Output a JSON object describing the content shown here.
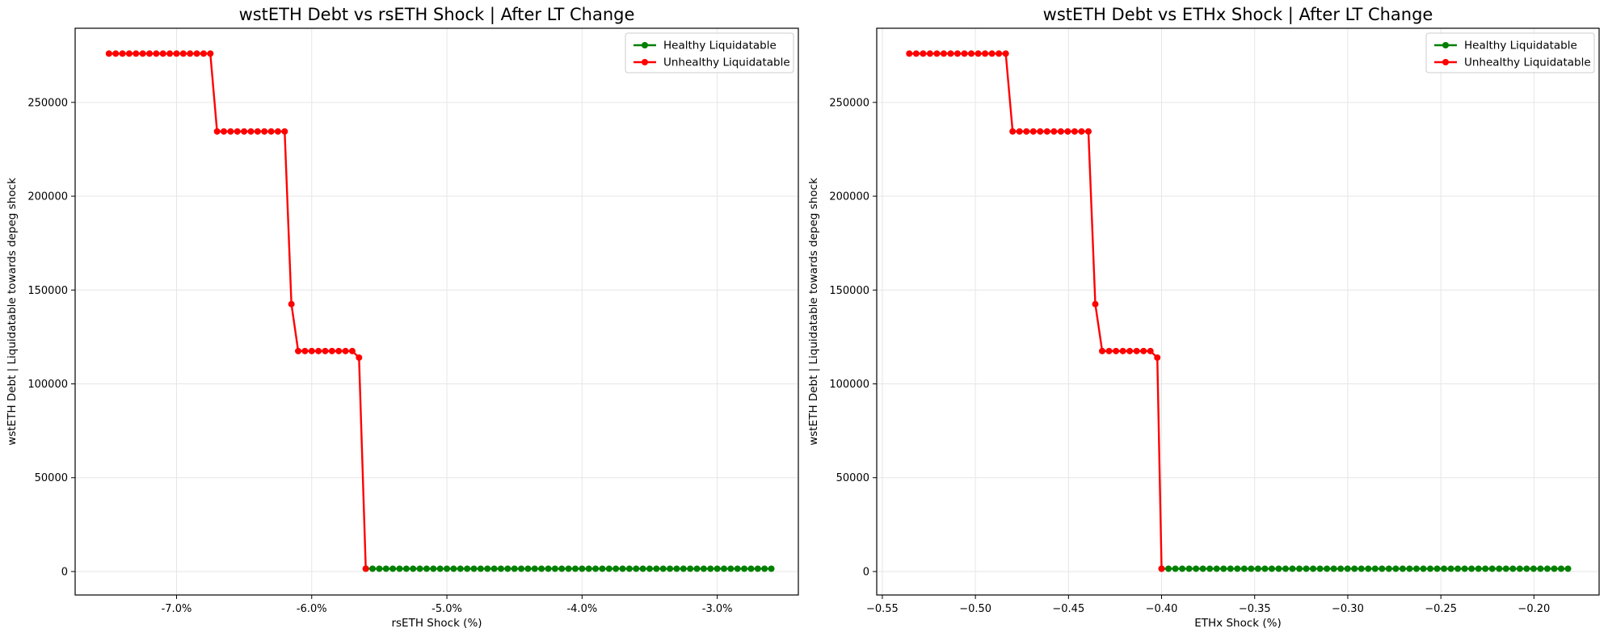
{
  "chart_data": [
    {
      "type": "line",
      "title": "wstETH Debt vs rsETH Shock | After LT Change",
      "xlabel": "rsETH Shock (%)",
      "ylabel": "wstETH Debt | Liquidatable towards depeg shock",
      "xlim": [
        -7.75,
        -2.4
      ],
      "ylim": [
        -12500,
        289500
      ],
      "x_ticks": [
        -7.0,
        -6.0,
        -5.0,
        -4.0,
        -3.0
      ],
      "x_tick_labels": [
        "-7.0%",
        "-6.0%",
        "-5.0%",
        "-4.0%",
        "-3.0%"
      ],
      "y_ticks": [
        0,
        50000,
        100000,
        150000,
        200000,
        250000
      ],
      "y_tick_labels": [
        "0",
        "50000",
        "100000",
        "150000",
        "200000",
        "250000"
      ],
      "grid": true,
      "legend_position": "top-right",
      "series": [
        {
          "name": "Healthy Liquidatable",
          "color": "#008000",
          "x": [
            -5.6,
            -5.55,
            -5.5,
            -5.45,
            -5.4,
            -5.35,
            -5.3,
            -5.25,
            -5.2,
            -5.15,
            -5.1,
            -5.05,
            -5.0,
            -4.95,
            -4.9,
            -4.85,
            -4.8,
            -4.75,
            -4.7,
            -4.65,
            -4.6,
            -4.55,
            -4.5,
            -4.45,
            -4.4,
            -4.35,
            -4.3,
            -4.25,
            -4.2,
            -4.15,
            -4.1,
            -4.05,
            -4.0,
            -3.95,
            -3.9,
            -3.85,
            -3.8,
            -3.75,
            -3.7,
            -3.65,
            -3.6,
            -3.55,
            -3.5,
            -3.45,
            -3.4,
            -3.35,
            -3.3,
            -3.25,
            -3.2,
            -3.15,
            -3.1,
            -3.05,
            -3.0,
            -2.95,
            -2.9,
            -2.85,
            -2.8,
            -2.75,
            -2.7,
            -2.65,
            -2.6
          ],
          "y": [
            1500,
            1500,
            1500,
            1500,
            1500,
            1500,
            1500,
            1500,
            1500,
            1500,
            1500,
            1500,
            1500,
            1500,
            1500,
            1500,
            1500,
            1500,
            1500,
            1500,
            1500,
            1500,
            1500,
            1500,
            1500,
            1500,
            1500,
            1500,
            1500,
            1500,
            1500,
            1500,
            1500,
            1500,
            1500,
            1500,
            1500,
            1500,
            1500,
            1500,
            1500,
            1500,
            1500,
            1500,
            1500,
            1500,
            1500,
            1500,
            1500,
            1500,
            1500,
            1500,
            1500,
            1500,
            1500,
            1500,
            1500,
            1500,
            1500,
            1500,
            1500
          ]
        },
        {
          "name": "Unhealthy Liquidatable",
          "color": "#ff0000",
          "x": [
            -7.5,
            -7.45,
            -7.4,
            -7.35,
            -7.3,
            -7.25,
            -7.2,
            -7.15,
            -7.1,
            -7.05,
            -7.0,
            -6.95,
            -6.9,
            -6.85,
            -6.8,
            -6.75,
            -6.7,
            -6.65,
            -6.6,
            -6.55,
            -6.5,
            -6.45,
            -6.4,
            -6.35,
            -6.3,
            -6.25,
            -6.2,
            -6.15,
            -6.1,
            -6.05,
            -6.0,
            -5.95,
            -5.9,
            -5.85,
            -5.8,
            -5.75,
            -5.7,
            -5.65,
            -5.6
          ],
          "y": [
            276000,
            276000,
            276000,
            276000,
            276000,
            276000,
            276000,
            276000,
            276000,
            276000,
            276000,
            276000,
            276000,
            276000,
            276000,
            276000,
            234500,
            234500,
            234500,
            234500,
            234500,
            234500,
            234500,
            234500,
            234500,
            234500,
            234500,
            142500,
            117500,
            117500,
            117500,
            117500,
            117500,
            117500,
            117500,
            117500,
            117500,
            114000,
            1500
          ]
        }
      ]
    },
    {
      "type": "line",
      "title": "wstETH Debt vs ETHx Shock | After LT Change",
      "xlabel": "ETHx Shock (%)",
      "ylabel": "wstETH Debt | Liquidatable towards depeg shock",
      "xlim": [
        -0.553,
        -0.165
      ],
      "ylim": [
        -12500,
        289500
      ],
      "x_ticks": [
        -0.55,
        -0.5,
        -0.45,
        -0.4,
        -0.35,
        -0.3,
        -0.25,
        -0.2
      ],
      "x_tick_labels": [
        "−0.55",
        "−0.50",
        "−0.45",
        "−0.40",
        "−0.35",
        "−0.30",
        "−0.25",
        "−0.20"
      ],
      "y_ticks": [
        0,
        50000,
        100000,
        150000,
        200000,
        250000
      ],
      "y_tick_labels": [
        "0",
        "50000",
        "100000",
        "150000",
        "200000",
        "250000"
      ],
      "grid": true,
      "legend_position": "top-right",
      "series": [
        {
          "name": "Healthy Liquidatable",
          "color": "#008000",
          "x": [
            -0.4,
            -0.3963,
            -0.3926,
            -0.3889,
            -0.3852,
            -0.3815,
            -0.3778,
            -0.3741,
            -0.3704,
            -0.3667,
            -0.363,
            -0.3593,
            -0.3556,
            -0.3519,
            -0.3482,
            -0.3445,
            -0.3408,
            -0.3371,
            -0.3334,
            -0.3297,
            -0.326,
            -0.3223,
            -0.3186,
            -0.3149,
            -0.3112,
            -0.3075,
            -0.3038,
            -0.3001,
            -0.2964,
            -0.2927,
            -0.289,
            -0.2853,
            -0.2816,
            -0.2779,
            -0.2742,
            -0.2705,
            -0.2668,
            -0.2631,
            -0.2594,
            -0.2557,
            -0.252,
            -0.2483,
            -0.2446,
            -0.2409,
            -0.2372,
            -0.2335,
            -0.2298,
            -0.2261,
            -0.2224,
            -0.2187,
            -0.215,
            -0.2113,
            -0.2076,
            -0.2039,
            -0.2002,
            -0.1965,
            -0.1928,
            -0.1891,
            -0.1854,
            -0.1817
          ],
          "y": [
            1500,
            1500,
            1500,
            1500,
            1500,
            1500,
            1500,
            1500,
            1500,
            1500,
            1500,
            1500,
            1500,
            1500,
            1500,
            1500,
            1500,
            1500,
            1500,
            1500,
            1500,
            1500,
            1500,
            1500,
            1500,
            1500,
            1500,
            1500,
            1500,
            1500,
            1500,
            1500,
            1500,
            1500,
            1500,
            1500,
            1500,
            1500,
            1500,
            1500,
            1500,
            1500,
            1500,
            1500,
            1500,
            1500,
            1500,
            1500,
            1500,
            1500,
            1500,
            1500,
            1500,
            1500,
            1500,
            1500,
            1500,
            1500,
            1500,
            1500
          ]
        },
        {
          "name": "Unhealthy Liquidatable",
          "color": "#ff0000",
          "x": [
            -0.5355,
            -0.5318,
            -0.5281,
            -0.5244,
            -0.5207,
            -0.517,
            -0.5133,
            -0.5096,
            -0.5059,
            -0.5022,
            -0.4985,
            -0.4948,
            -0.4911,
            -0.4874,
            -0.4837,
            -0.48,
            -0.4763,
            -0.4726,
            -0.4689,
            -0.4652,
            -0.4615,
            -0.4578,
            -0.4541,
            -0.4504,
            -0.4467,
            -0.443,
            -0.4393,
            -0.4356,
            -0.4319,
            -0.4282,
            -0.4245,
            -0.4208,
            -0.4171,
            -0.4134,
            -0.4097,
            -0.406,
            -0.4023,
            -0.4
          ],
          "y": [
            276000,
            276000,
            276000,
            276000,
            276000,
            276000,
            276000,
            276000,
            276000,
            276000,
            276000,
            276000,
            276000,
            276000,
            276000,
            234500,
            234500,
            234500,
            234500,
            234500,
            234500,
            234500,
            234500,
            234500,
            234500,
            234500,
            234500,
            142500,
            117500,
            117500,
            117500,
            117500,
            117500,
            117500,
            117500,
            117500,
            114000,
            1500
          ]
        }
      ]
    }
  ]
}
